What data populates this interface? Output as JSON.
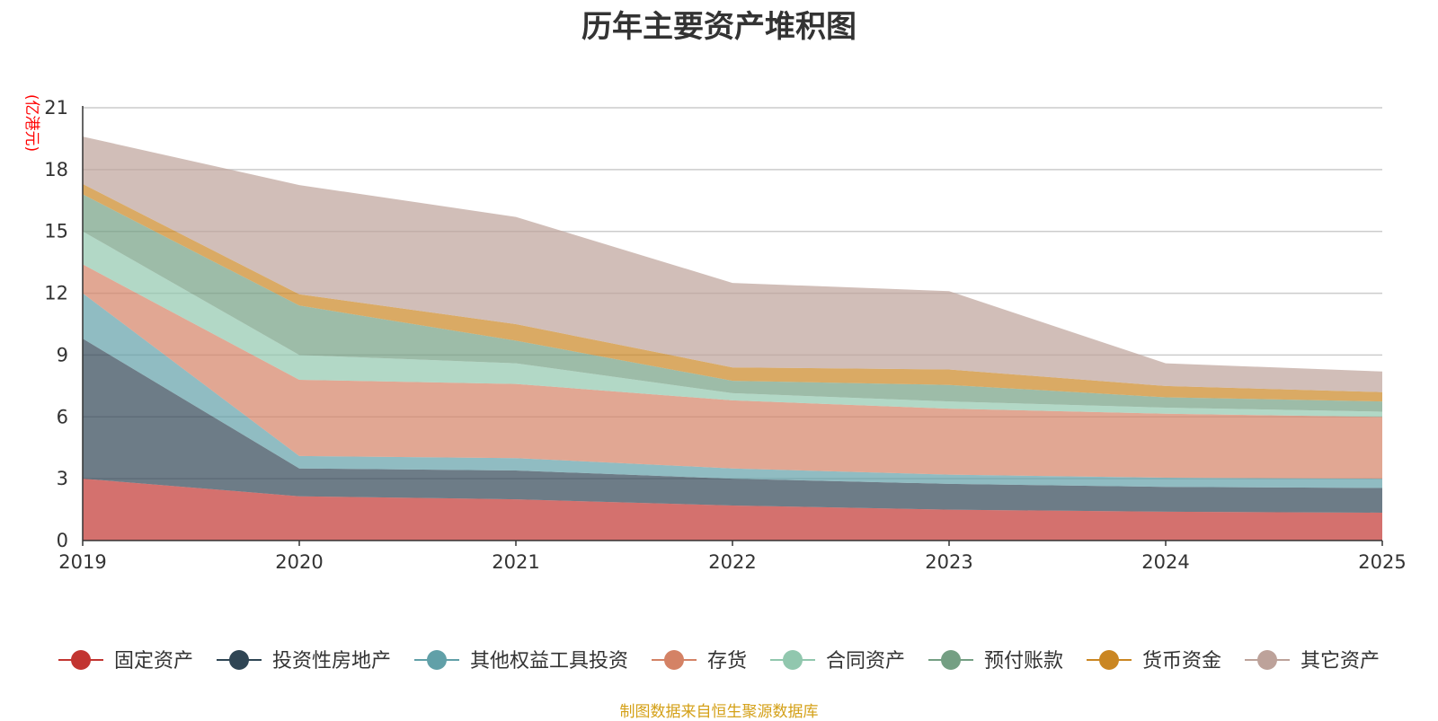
{
  "chart_data": {
    "type": "area",
    "stacked": true,
    "title": "历年主要资产堆积图",
    "ylabel": "(亿港元)",
    "xlabel": "",
    "x": [
      "2019",
      "2020",
      "2021",
      "2022",
      "2023",
      "2024",
      "2025"
    ],
    "ylim": [
      0,
      21
    ],
    "yticks": [
      0,
      3,
      6,
      9,
      12,
      15,
      18,
      21
    ],
    "grid": true,
    "legend_position": "bottom",
    "series": [
      {
        "name": "固定资产",
        "color": "#c23531",
        "values": [
          3.0,
          2.15,
          2.0,
          1.7,
          1.5,
          1.4,
          1.35
        ]
      },
      {
        "name": "投资性房地产",
        "color": "#2f4554",
        "values": [
          6.8,
          1.35,
          1.4,
          1.3,
          1.25,
          1.2,
          1.2
        ]
      },
      {
        "name": "其他权益工具投资",
        "color": "#61a0a8",
        "values": [
          2.2,
          0.6,
          0.6,
          0.5,
          0.45,
          0.45,
          0.45
        ]
      },
      {
        "name": "存货",
        "color": "#d48265",
        "values": [
          1.4,
          3.7,
          3.6,
          3.3,
          3.2,
          3.1,
          3.0
        ]
      },
      {
        "name": "合同资产",
        "color": "#91c7ae",
        "values": [
          1.6,
          1.2,
          1.0,
          0.35,
          0.35,
          0.3,
          0.25
        ]
      },
      {
        "name": "预付账款",
        "color": "#749f83",
        "values": [
          1.8,
          2.4,
          1.1,
          0.6,
          0.8,
          0.5,
          0.5
        ]
      },
      {
        "name": "货币资金",
        "color": "#ca8622",
        "values": [
          0.5,
          0.55,
          0.8,
          0.65,
          0.75,
          0.55,
          0.45
        ]
      },
      {
        "name": "其它资产",
        "color": "#bda29a",
        "values": [
          2.3,
          5.3,
          5.2,
          4.1,
          3.8,
          1.1,
          1.0
        ]
      }
    ]
  },
  "source_note": "制图数据来自恒生聚源数据库"
}
